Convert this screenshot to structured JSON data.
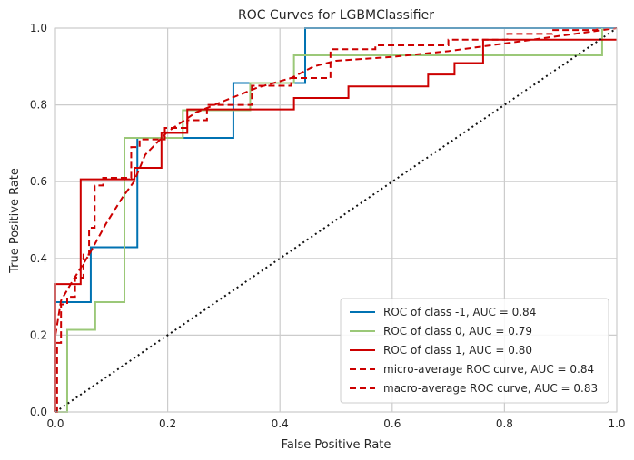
{
  "chart_data": {
    "type": "line",
    "title": "ROC Curves for LGBMClassifier",
    "xlabel": "False Positive Rate",
    "ylabel": "True Positive Rate",
    "xlim": [
      0,
      1
    ],
    "ylim": [
      0,
      1
    ],
    "xticks": [
      "0.0",
      "0.2",
      "0.4",
      "0.6",
      "0.8",
      "1.0"
    ],
    "yticks": [
      "0.0",
      "0.2",
      "0.4",
      "0.6",
      "0.8",
      "1.0"
    ],
    "grid": true,
    "legend_position": "bottom-right",
    "series": [
      {
        "name": "ROC of class -1, AUC = 0.84",
        "color": "#0072b2",
        "dash": "solid",
        "x": [
          0,
          0,
          0.063,
          0.063,
          0.146,
          0.146,
          0.317,
          0.317,
          0.445,
          0.445,
          1.0
        ],
        "y": [
          0,
          0.286,
          0.286,
          0.429,
          0.429,
          0.714,
          0.714,
          0.857,
          0.857,
          1.0,
          1.0
        ]
      },
      {
        "name": "ROC of class 0, AUC = 0.79",
        "color": "#9bc878",
        "dash": "solid",
        "x": [
          0,
          0.021,
          0.021,
          0.071,
          0.071,
          0.123,
          0.123,
          0.227,
          0.227,
          0.347,
          0.347,
          0.425,
          0.425,
          0.974,
          0.974
        ],
        "y": [
          0,
          0,
          0.214,
          0.214,
          0.286,
          0.286,
          0.714,
          0.714,
          0.786,
          0.786,
          0.857,
          0.857,
          0.929,
          0.929,
          1.0
        ]
      },
      {
        "name": "ROC of class 1, AUC = 0.80",
        "color": "#cc0000",
        "dash": "solid",
        "x": [
          0,
          0,
          0.045,
          0.045,
          0.141,
          0.141,
          0.189,
          0.189,
          0.235,
          0.235,
          0.425,
          0.425,
          0.522,
          0.522,
          0.664,
          0.664,
          0.711,
          0.711,
          0.762,
          0.762,
          1.0
        ],
        "y": [
          0,
          0.333,
          0.333,
          0.606,
          0.606,
          0.636,
          0.636,
          0.727,
          0.727,
          0.788,
          0.788,
          0.818,
          0.818,
          0.848,
          0.848,
          0.879,
          0.879,
          0.909,
          0.909,
          0.97,
          0.97
        ]
      },
      {
        "name": "micro-average ROC curve, AUC = 0.84",
        "color": "#cc0000",
        "dash": "dashed",
        "x": [
          0,
          0.003,
          0.003,
          0.01,
          0.01,
          0.021,
          0.021,
          0.035,
          0.035,
          0.05,
          0.05,
          0.06,
          0.06,
          0.07,
          0.07,
          0.085,
          0.085,
          0.135,
          0.135,
          0.15,
          0.15,
          0.195,
          0.195,
          0.235,
          0.235,
          0.27,
          0.27,
          0.35,
          0.35,
          0.42,
          0.42,
          0.49,
          0.49,
          0.57,
          0.57,
          0.7,
          0.7,
          0.805,
          0.805,
          0.885,
          0.885,
          0.965,
          0.965
        ],
        "y": [
          0,
          0,
          0.18,
          0.18,
          0.28,
          0.28,
          0.3,
          0.3,
          0.35,
          0.35,
          0.41,
          0.41,
          0.48,
          0.48,
          0.59,
          0.59,
          0.61,
          0.61,
          0.69,
          0.69,
          0.71,
          0.71,
          0.74,
          0.74,
          0.76,
          0.76,
          0.8,
          0.8,
          0.85,
          0.85,
          0.87,
          0.87,
          0.945,
          0.945,
          0.955,
          0.955,
          0.97,
          0.97,
          0.985,
          0.985,
          0.995,
          0.995,
          1.0
        ]
      },
      {
        "name": "macro-average ROC curve, AUC = 0.83",
        "color": "#cc0000",
        "dash": "dashed",
        "x": [
          0,
          0.01,
          0.03,
          0.06,
          0.09,
          0.12,
          0.14,
          0.16,
          0.2,
          0.25,
          0.3,
          0.36,
          0.42,
          0.46,
          0.5,
          0.6,
          0.7,
          0.8,
          0.9,
          1.0
        ],
        "y": [
          0.2,
          0.29,
          0.34,
          0.41,
          0.49,
          0.56,
          0.6,
          0.67,
          0.73,
          0.78,
          0.81,
          0.845,
          0.87,
          0.9,
          0.915,
          0.925,
          0.94,
          0.96,
          0.98,
          1.0
        ]
      },
      {
        "name": "",
        "color": "#111111",
        "dash": "dotted",
        "x": [
          0,
          1
        ],
        "y": [
          0,
          1
        ]
      }
    ]
  }
}
